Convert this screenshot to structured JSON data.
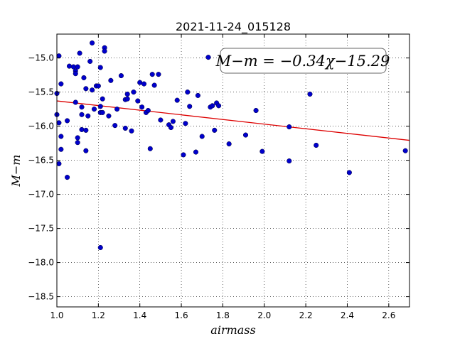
{
  "chart_data": {
    "type": "scatter",
    "title": "2021-11-24_015128",
    "xlabel": "airmass",
    "ylabel": "M−m",
    "xlim": [
      1.0,
      2.7
    ],
    "ylim": [
      -18.65,
      -14.65
    ],
    "x_ticks": [
      1.0,
      1.2,
      1.4,
      1.6,
      1.8,
      2.0,
      2.2,
      2.4,
      2.6
    ],
    "x_tick_labels": [
      "1.0",
      "1.2",
      "1.4",
      "1.6",
      "1.8",
      "2.0",
      "2.2",
      "2.4",
      "2.6"
    ],
    "y_ticks": [
      -15.0,
      -15.5,
      -16.0,
      -16.5,
      -17.0,
      -17.5,
      -18.0,
      -18.5
    ],
    "y_tick_labels": [
      "−15.0",
      "−15.5",
      "−16.0",
      "−16.5",
      "−17.0",
      "−17.5",
      "−18.0",
      "−18.5"
    ],
    "grid": true,
    "point_color": "#0000cc",
    "fit_color": "#dd0000",
    "annotation": "M−m = −0.34χ−15.29",
    "fit": {
      "slope": -0.34,
      "intercept": -15.29
    },
    "series": [
      {
        "points": [
          [
            1.0,
            -15.52
          ],
          [
            1.0,
            -15.83
          ],
          [
            1.01,
            -15.95
          ],
          [
            1.01,
            -16.55
          ],
          [
            1.01,
            -14.97
          ],
          [
            1.02,
            -15.38
          ],
          [
            1.02,
            -16.15
          ],
          [
            1.02,
            -16.34
          ],
          [
            1.05,
            -16.75
          ],
          [
            1.05,
            -15.92
          ],
          [
            1.06,
            -15.12
          ],
          [
            1.08,
            -15.13
          ],
          [
            1.09,
            -15.19
          ],
          [
            1.09,
            -15.23
          ],
          [
            1.09,
            -15.65
          ],
          [
            1.1,
            -16.17
          ],
          [
            1.1,
            -16.24
          ],
          [
            1.1,
            -15.13
          ],
          [
            1.11,
            -14.93
          ],
          [
            1.12,
            -15.72
          ],
          [
            1.12,
            -15.83
          ],
          [
            1.12,
            -16.05
          ],
          [
            1.13,
            -15.29
          ],
          [
            1.14,
            -15.45
          ],
          [
            1.14,
            -16.06
          ],
          [
            1.14,
            -16.36
          ],
          [
            1.15,
            -15.85
          ],
          [
            1.16,
            -15.05
          ],
          [
            1.17,
            -14.78
          ],
          [
            1.17,
            -15.47
          ],
          [
            1.18,
            -15.75
          ],
          [
            1.19,
            -15.41
          ],
          [
            1.2,
            -15.41
          ],
          [
            1.21,
            -15.8
          ],
          [
            1.21,
            -15.71
          ],
          [
            1.21,
            -15.14
          ],
          [
            1.21,
            -17.78
          ],
          [
            1.22,
            -15.6
          ],
          [
            1.22,
            -15.8
          ],
          [
            1.23,
            -14.85
          ],
          [
            1.23,
            -14.9
          ],
          [
            1.25,
            -15.85
          ],
          [
            1.26,
            -15.33
          ],
          [
            1.28,
            -15.99
          ],
          [
            1.29,
            -15.75
          ],
          [
            1.31,
            -15.26
          ],
          [
            1.33,
            -15.61
          ],
          [
            1.33,
            -16.03
          ],
          [
            1.34,
            -15.53
          ],
          [
            1.34,
            -15.6
          ],
          [
            1.36,
            -16.07
          ],
          [
            1.37,
            -15.5
          ],
          [
            1.39,
            -15.63
          ],
          [
            1.4,
            -15.36
          ],
          [
            1.41,
            -15.72
          ],
          [
            1.42,
            -15.38
          ],
          [
            1.43,
            -15.8
          ],
          [
            1.44,
            -15.77
          ],
          [
            1.45,
            -16.33
          ],
          [
            1.46,
            -15.24
          ],
          [
            1.47,
            -15.4
          ],
          [
            1.49,
            -15.24
          ],
          [
            1.5,
            -15.91
          ],
          [
            1.54,
            -15.98
          ],
          [
            1.55,
            -16.02
          ],
          [
            1.56,
            -15.93
          ],
          [
            1.58,
            -15.62
          ],
          [
            1.61,
            -16.42
          ],
          [
            1.62,
            -15.96
          ],
          [
            1.63,
            -15.5
          ],
          [
            1.64,
            -15.71
          ],
          [
            1.67,
            -16.38
          ],
          [
            1.68,
            -15.55
          ],
          [
            1.7,
            -16.15
          ],
          [
            1.73,
            -14.99
          ],
          [
            1.74,
            -15.72
          ],
          [
            1.75,
            -15.7
          ],
          [
            1.76,
            -16.06
          ],
          [
            1.77,
            -15.66
          ],
          [
            1.78,
            -15.7
          ],
          [
            1.83,
            -16.26
          ],
          [
            1.91,
            -16.13
          ],
          [
            1.96,
            -15.77
          ],
          [
            1.99,
            -16.37
          ],
          [
            2.12,
            -16.01
          ],
          [
            2.12,
            -16.51
          ],
          [
            2.22,
            -15.53
          ],
          [
            2.25,
            -16.28
          ],
          [
            2.41,
            -16.68
          ],
          [
            2.68,
            -16.36
          ]
        ]
      }
    ]
  }
}
